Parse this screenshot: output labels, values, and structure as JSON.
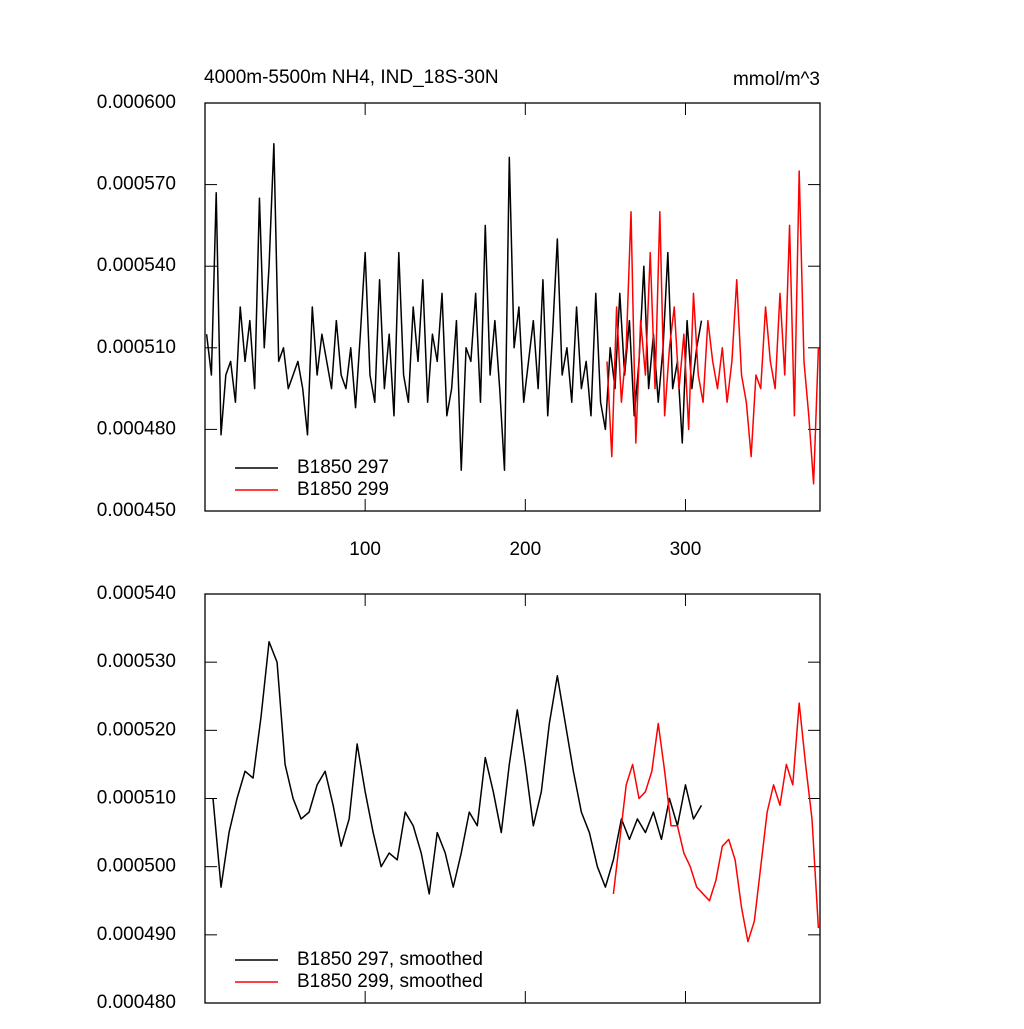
{
  "chart_data": [
    {
      "type": "line",
      "title": "4000m-5500m NH4, IND_18S-30N",
      "units": "mmol/m^3",
      "xlim": [
        0,
        384
      ],
      "xticks": [
        100,
        200,
        300
      ],
      "show_xtick_labels": true,
      "ylim": [
        0.00045,
        0.0006
      ],
      "yticks": [
        {
          "value": 0.00045,
          "label": "0.000450"
        },
        {
          "value": 0.00048,
          "label": "0.000480"
        },
        {
          "value": 0.00051,
          "label": "0.000510"
        },
        {
          "value": 0.00054,
          "label": "0.000540"
        },
        {
          "value": 0.00057,
          "label": "0.000570"
        },
        {
          "value": 0.0006,
          "label": "0.000600"
        }
      ],
      "legend": "lower-left",
      "series": [
        {
          "name": "B1850 297",
          "color": "#000000",
          "x": [
            1,
            4,
            7,
            10,
            13,
            16,
            19,
            22,
            25,
            28,
            31,
            34,
            37,
            40,
            43,
            46,
            49,
            52,
            55,
            58,
            61,
            64,
            67,
            70,
            73,
            76,
            79,
            82,
            85,
            88,
            91,
            94,
            97,
            100,
            103,
            106,
            109,
            112,
            115,
            118,
            121,
            124,
            127,
            130,
            133,
            136,
            139,
            142,
            145,
            148,
            151,
            154,
            157,
            160,
            163,
            166,
            169,
            172,
            175,
            178,
            181,
            184,
            187,
            190,
            193,
            196,
            199,
            202,
            205,
            208,
            211,
            214,
            217,
            220,
            223,
            226,
            229,
            232,
            235,
            238,
            241,
            244,
            247,
            250,
            253,
            256,
            259,
            262,
            265,
            268,
            271,
            274,
            277,
            280,
            283,
            286,
            289,
            292,
            295,
            298,
            301,
            304,
            307,
            310
          ],
          "values": [
            0.000515,
            0.0005,
            0.000567,
            0.000478,
            0.0005,
            0.000505,
            0.00049,
            0.000525,
            0.000505,
            0.00052,
            0.000495,
            0.000565,
            0.00051,
            0.00054,
            0.000585,
            0.000505,
            0.00051,
            0.000495,
            0.0005,
            0.000505,
            0.000495,
            0.000478,
            0.000525,
            0.0005,
            0.000515,
            0.000505,
            0.000495,
            0.00052,
            0.0005,
            0.000495,
            0.00051,
            0.000488,
            0.000515,
            0.000545,
            0.0005,
            0.00049,
            0.000535,
            0.000495,
            0.000515,
            0.000485,
            0.000545,
            0.0005,
            0.00049,
            0.000525,
            0.000505,
            0.000535,
            0.00049,
            0.000515,
            0.000505,
            0.00053,
            0.000485,
            0.000495,
            0.00052,
            0.000465,
            0.00051,
            0.000505,
            0.00053,
            0.00049,
            0.000555,
            0.0005,
            0.00052,
            0.000495,
            0.000465,
            0.00058,
            0.00051,
            0.000525,
            0.00049,
            0.000505,
            0.00052,
            0.000495,
            0.000535,
            0.000485,
            0.000515,
            0.00055,
            0.0005,
            0.00051,
            0.00049,
            0.000525,
            0.000495,
            0.000505,
            0.000485,
            0.00053,
            0.00049,
            0.00048,
            0.00051,
            0.000495,
            0.00053,
            0.0005,
            0.00052,
            0.000485,
            0.000505,
            0.00054,
            0.000495,
            0.000515,
            0.00049,
            0.00051,
            0.000545,
            0.000495,
            0.000505,
            0.000475,
            0.00052,
            0.000495,
            0.00051,
            0.00052
          ]
        },
        {
          "name": "B1850 299",
          "color": "#ff0000",
          "x": [
            251,
            254,
            257,
            260,
            263,
            266,
            269,
            272,
            275,
            278,
            281,
            284,
            287,
            290,
            293,
            296,
            299,
            302,
            305,
            308,
            311,
            314,
            317,
            320,
            323,
            326,
            329,
            332,
            335,
            338,
            341,
            344,
            347,
            350,
            353,
            356,
            359,
            362,
            365,
            368,
            371,
            374,
            377,
            380,
            383
          ],
          "values": [
            0.000505,
            0.00047,
            0.000525,
            0.00049,
            0.00051,
            0.00056,
            0.000475,
            0.00052,
            0.0005,
            0.000545,
            0.000495,
            0.00056,
            0.000485,
            0.00051,
            0.000525,
            0.000495,
            0.000515,
            0.00048,
            0.00053,
            0.0005,
            0.00049,
            0.00052,
            0.000505,
            0.000495,
            0.00051,
            0.00049,
            0.000505,
            0.000535,
            0.0005,
            0.00049,
            0.00047,
            0.0005,
            0.000495,
            0.000525,
            0.000505,
            0.000495,
            0.00053,
            0.0005,
            0.000555,
            0.000485,
            0.000575,
            0.000505,
            0.000485,
            0.00046,
            0.00051
          ]
        }
      ]
    },
    {
      "type": "line",
      "xlim": [
        0,
        384
      ],
      "xticks": [
        100,
        200,
        300
      ],
      "show_xtick_labels": false,
      "ylim": [
        0.00048,
        0.00054
      ],
      "yticks": [
        {
          "value": 0.00048,
          "label": "0.000480"
        },
        {
          "value": 0.00049,
          "label": "0.000490"
        },
        {
          "value": 0.0005,
          "label": "0.000500"
        },
        {
          "value": 0.00051,
          "label": "0.000510"
        },
        {
          "value": 0.00052,
          "label": "0.000520"
        },
        {
          "value": 0.00053,
          "label": "0.000530"
        },
        {
          "value": 0.00054,
          "label": "0.000540"
        }
      ],
      "legend": "lower-left",
      "series": [
        {
          "name": "B1850 297, smoothed",
          "color": "#000000",
          "x": [
            5,
            10,
            15,
            20,
            25,
            30,
            35,
            40,
            45,
            50,
            55,
            60,
            65,
            70,
            75,
            80,
            85,
            90,
            95,
            100,
            105,
            110,
            115,
            120,
            125,
            130,
            135,
            140,
            145,
            150,
            155,
            160,
            165,
            170,
            175,
            180,
            185,
            190,
            195,
            200,
            205,
            210,
            215,
            220,
            225,
            230,
            235,
            240,
            245,
            250,
            255,
            260,
            265,
            270,
            275,
            280,
            285,
            290,
            295,
            300,
            305,
            310
          ],
          "values": [
            0.00051,
            0.000497,
            0.000505,
            0.00051,
            0.000514,
            0.000513,
            0.000522,
            0.000533,
            0.00053,
            0.000515,
            0.00051,
            0.000507,
            0.000508,
            0.000512,
            0.000514,
            0.000509,
            0.000503,
            0.000507,
            0.000518,
            0.000511,
            0.000505,
            0.0005,
            0.000502,
            0.000501,
            0.000508,
            0.000506,
            0.000502,
            0.000496,
            0.000505,
            0.000502,
            0.000497,
            0.000502,
            0.000508,
            0.000506,
            0.000516,
            0.000511,
            0.000505,
            0.000515,
            0.000523,
            0.000515,
            0.000506,
            0.000511,
            0.000521,
            0.000528,
            0.000521,
            0.000514,
            0.000508,
            0.000505,
            0.0005,
            0.000497,
            0.000501,
            0.000507,
            0.000504,
            0.000507,
            0.000505,
            0.000508,
            0.000504,
            0.00051,
            0.000506,
            0.000512,
            0.000507,
            0.000509
          ]
        },
        {
          "name": "B1850 299, smoothed",
          "color": "#ff0000",
          "x": [
            255,
            259,
            263,
            267,
            271,
            275,
            279,
            283,
            287,
            291,
            295,
            299,
            303,
            307,
            311,
            315,
            319,
            323,
            327,
            331,
            335,
            339,
            343,
            347,
            351,
            355,
            359,
            363,
            367,
            371,
            375,
            379,
            383
          ],
          "values": [
            0.000496,
            0.000504,
            0.000512,
            0.000515,
            0.00051,
            0.000511,
            0.000514,
            0.000521,
            0.000514,
            0.000506,
            0.000506,
            0.000502,
            0.0005,
            0.000497,
            0.000496,
            0.000495,
            0.000498,
            0.000503,
            0.000504,
            0.000501,
            0.000494,
            0.000489,
            0.000492,
            0.0005,
            0.000508,
            0.000512,
            0.000509,
            0.000515,
            0.000512,
            0.000524,
            0.000515,
            0.000507,
            0.000491
          ]
        }
      ]
    }
  ]
}
